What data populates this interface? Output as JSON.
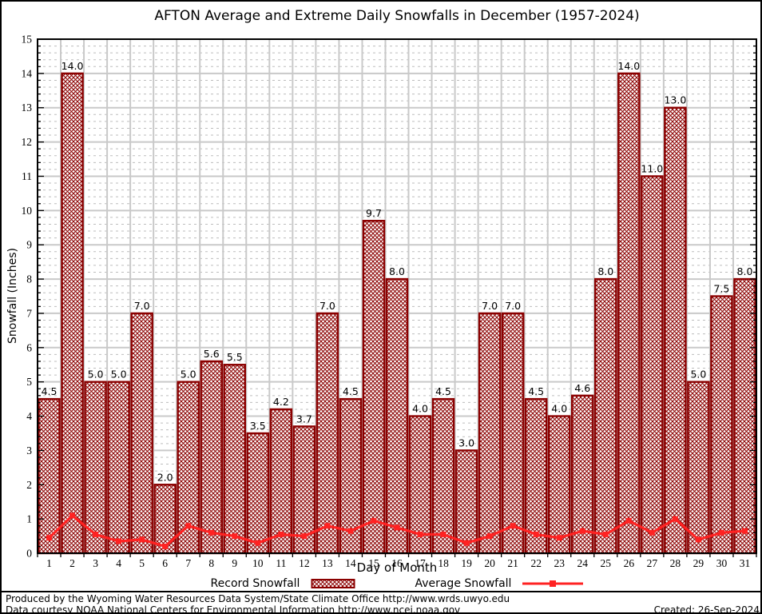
{
  "title": "AFTON Average and Extreme Daily Snowfalls in December (1957-2024)",
  "chart_data": {
    "type": "bar",
    "title": "AFTON Average and Extreme Daily Snowfalls in December (1957-2024)",
    "xlabel": "Day of Month",
    "ylabel": "Snowfall (Inches)",
    "ylim": [
      0,
      15
    ],
    "y_major_step": 1,
    "y_minor_step": 0.2,
    "grid": true,
    "legend_position": "bottom",
    "categories": [
      1,
      2,
      3,
      4,
      5,
      6,
      7,
      8,
      9,
      10,
      11,
      12,
      13,
      14,
      15,
      16,
      17,
      18,
      19,
      20,
      21,
      22,
      23,
      24,
      25,
      26,
      27,
      28,
      29,
      30,
      31
    ],
    "series": [
      {
        "name": "Record Snowfall",
        "type": "bar",
        "color": "#8b0000",
        "values": [
          4.5,
          14.0,
          5.0,
          5.0,
          7.0,
          2.0,
          5.0,
          5.6,
          5.5,
          3.5,
          4.2,
          3.7,
          7.0,
          4.5,
          9.7,
          8.0,
          4.0,
          4.5,
          3.0,
          7.0,
          7.0,
          4.5,
          4.0,
          4.6,
          8.0,
          14.0,
          11.0,
          13.0,
          5.0,
          7.5,
          8.0
        ]
      },
      {
        "name": "Average Snowfall",
        "type": "line",
        "color": "#ff2222",
        "values": [
          0.45,
          1.1,
          0.55,
          0.35,
          0.4,
          0.2,
          0.8,
          0.6,
          0.5,
          0.3,
          0.55,
          0.5,
          0.8,
          0.65,
          0.95,
          0.75,
          0.55,
          0.55,
          0.3,
          0.5,
          0.8,
          0.55,
          0.45,
          0.65,
          0.55,
          0.95,
          0.6,
          1.0,
          0.4,
          0.6,
          0.65
        ]
      }
    ]
  },
  "colors": {
    "bar_edge": "#8b0000",
    "average_line": "#ff2222",
    "grid_major": "#c9c9c9",
    "grid_minor": "#bdbdbd",
    "axis": "#000000"
  },
  "footer": {
    "line1": "Produced by the Wyoming Water Resources Data System/State Climate Office http://www.wrds.uwyo.edu",
    "line2": "Data courtesy NOAA National Centers for Environmental Information http://www.ncei.noaa.gov",
    "created": "Created: 26-Sep-2024"
  }
}
